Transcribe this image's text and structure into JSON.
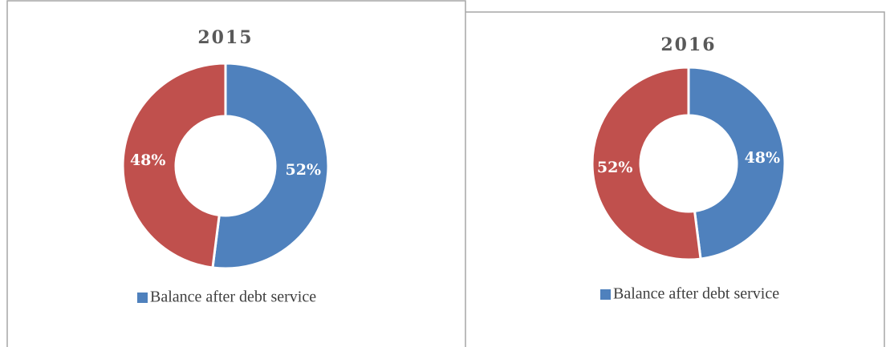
{
  "chart_data": [
    {
      "type": "donut",
      "title": "2015",
      "categories": [
        "Balance after debt service",
        null
      ],
      "values": [
        52,
        48
      ],
      "value_labels": [
        "52%",
        "48%"
      ],
      "colors": [
        "#4f81bd",
        "#c0504d"
      ],
      "legend": "bottom"
    },
    {
      "type": "donut",
      "title": "2016",
      "categories": [
        "Balance after debt service",
        null
      ],
      "values": [
        48,
        52
      ],
      "value_labels": [
        "48%",
        "52%"
      ],
      "colors": [
        "#4f81bd",
        "#c0504d"
      ],
      "legend": "bottom"
    }
  ]
}
